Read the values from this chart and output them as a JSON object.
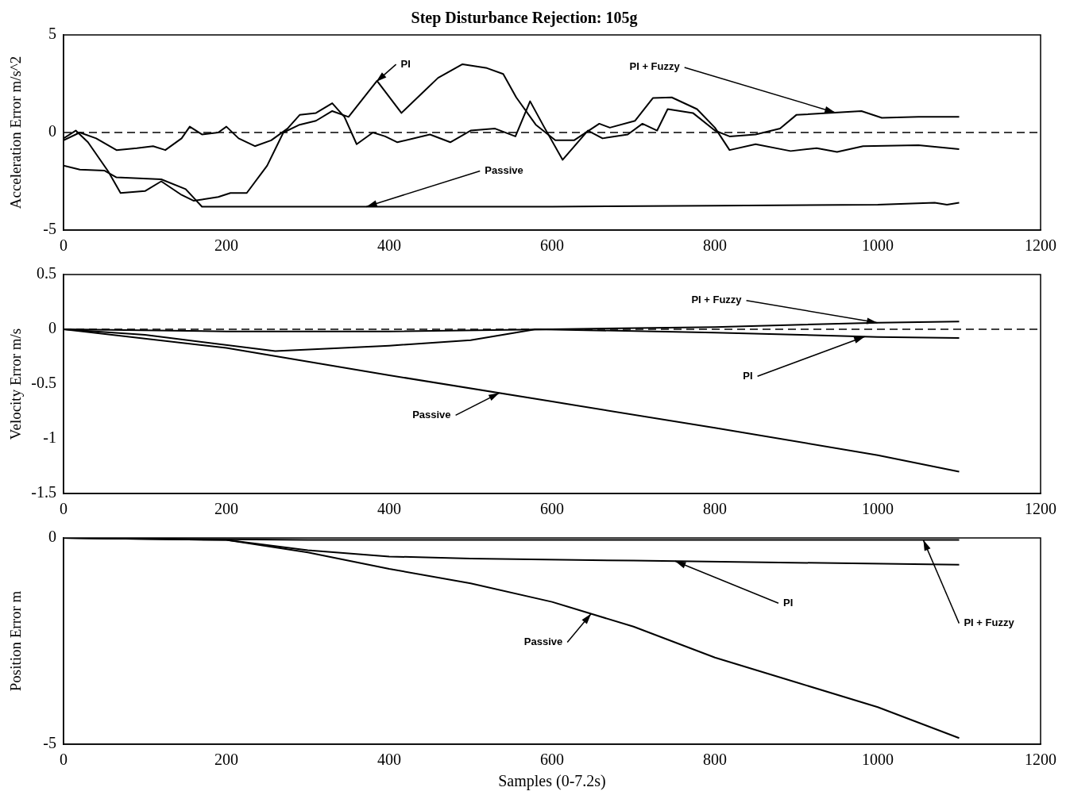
{
  "chart_data": [
    {
      "type": "line",
      "title": "Step Disturbance Rejection: 105g",
      "ylabel": "Acceleration Error m/s^2",
      "xlim": [
        0,
        1200
      ],
      "xticks": [
        0,
        200,
        400,
        600,
        800,
        1000,
        1200
      ],
      "ylim": [
        -5,
        5
      ],
      "yticks": [
        -5,
        0,
        5
      ],
      "series": [
        {
          "name": "PI",
          "color": "#000000",
          "x": [
            0,
            15,
            30,
            55,
            70,
            100,
            120,
            145,
            160,
            190,
            205,
            225,
            250,
            270,
            290,
            310,
            330,
            350,
            385,
            415,
            440,
            460,
            490,
            520,
            540,
            556,
            580,
            604,
            627,
            658,
            671,
            702,
            724,
            747,
            778,
            800,
            818,
            850,
            893,
            925,
            950,
            982,
            1050,
            1100
          ],
          "values": [
            -0.3,
            0.1,
            -0.5,
            -2.0,
            -3.1,
            -3.0,
            -2.5,
            -3.2,
            -3.5,
            -3.3,
            -3.1,
            -3.1,
            -1.7,
            0,
            0.4,
            0.6,
            1.1,
            0.8,
            2.65,
            1.0,
            2.0,
            2.8,
            3.5,
            3.3,
            3.0,
            1.8,
            0.4,
            -0.4,
            -0.4,
            0.45,
            0.25,
            0.6,
            1.77,
            1.8,
            1.2,
            0.25,
            -0.9,
            -0.6,
            -0.95,
            -0.8,
            -1.0,
            -0.7,
            -0.65,
            -0.85
          ]
        },
        {
          "name": "PI + Fuzzy",
          "color": "#000000",
          "x": [
            0,
            20,
            40,
            65,
            90,
            110,
            125,
            145,
            155,
            170,
            190,
            200,
            215,
            235,
            255,
            275,
            290,
            310,
            330,
            345,
            360,
            380,
            395,
            410,
            450,
            475,
            500,
            530,
            555,
            573,
            590,
            613,
            644,
            662,
            693,
            711,
            729,
            742,
            773,
            800,
            818,
            850,
            880,
            900,
            980,
            1005,
            1050,
            1100
          ],
          "values": [
            -0.4,
            0,
            -0.3,
            -0.9,
            -0.8,
            -0.7,
            -0.9,
            -0.3,
            0.3,
            -0.1,
            0,
            0.3,
            -0.3,
            -0.7,
            -0.4,
            0.2,
            0.9,
            1.0,
            1.5,
            0.8,
            -0.6,
            0,
            -0.2,
            -0.5,
            -0.1,
            -0.5,
            0.1,
            0.2,
            -0.2,
            1.6,
            0.3,
            -1.4,
            0.1,
            -0.3,
            -0.1,
            0.45,
            0.1,
            1.2,
            1.0,
            0.1,
            -0.2,
            -0.1,
            0.2,
            0.9,
            1.1,
            0.75,
            0.8,
            0.8
          ]
        },
        {
          "name": "Passive",
          "color": "#000000",
          "x": [
            0,
            20,
            50,
            65,
            120,
            150,
            170,
            400,
            600,
            800,
            1000,
            1070,
            1085,
            1100
          ],
          "values": [
            -1.7,
            -1.9,
            -1.95,
            -2.3,
            -2.4,
            -2.9,
            -3.8,
            -3.8,
            -3.8,
            -3.75,
            -3.7,
            -3.6,
            -3.7,
            -3.6
          ]
        }
      ],
      "ref_lines": [
        {
          "axis": "y",
          "value": 0,
          "line_style": "dashed",
          "color": "#000000"
        }
      ]
    },
    {
      "type": "line",
      "ylabel": "Velocity Error m/s",
      "xlim": [
        0,
        1200
      ],
      "xticks": [
        0,
        200,
        400,
        600,
        800,
        1000,
        1200
      ],
      "ylim": [
        -1.5,
        0.5
      ],
      "yticks": [
        -1.5,
        -1,
        -0.5,
        0,
        0.5
      ],
      "series": [
        {
          "name": "Passive",
          "color": "#000000",
          "x": [
            0,
            200,
            400,
            600,
            800,
            1000,
            1100
          ],
          "values": [
            0,
            -0.17,
            -0.42,
            -0.66,
            -0.9,
            -1.15,
            -1.3
          ]
        },
        {
          "name": "PI",
          "color": "#000000",
          "x": [
            0,
            100,
            260,
            400,
            500,
            580,
            800,
            1000,
            1100
          ],
          "values": [
            0,
            -0.05,
            -0.2,
            -0.15,
            -0.1,
            0,
            -0.03,
            -0.07,
            -0.08
          ]
        },
        {
          "name": "PI + Fuzzy",
          "color": "#000000",
          "x": [
            0,
            200,
            400,
            600,
            800,
            1000,
            1100
          ],
          "values": [
            0,
            -0.02,
            -0.02,
            0,
            0.02,
            0.06,
            0.07
          ]
        }
      ],
      "ref_lines": [
        {
          "axis": "y",
          "value": 0,
          "line_style": "dashed",
          "color": "#000000"
        }
      ]
    },
    {
      "type": "line",
      "xlabel": "Samples (0-7.2s)",
      "ylabel": "Position Error m",
      "xlim": [
        0,
        1200
      ],
      "xticks": [
        0,
        200,
        400,
        600,
        800,
        1000,
        1200
      ],
      "ylim": [
        -5,
        0
      ],
      "yticks": [
        -5,
        0
      ],
      "series": [
        {
          "name": "Passive",
          "color": "#000000",
          "x": [
            0,
            200,
            300,
            400,
            500,
            600,
            700,
            800,
            900,
            1000,
            1100
          ],
          "values": [
            0,
            -0.05,
            -0.35,
            -0.75,
            -1.1,
            -1.55,
            -2.15,
            -2.9,
            -3.5,
            -4.1,
            -4.85
          ]
        },
        {
          "name": "PI",
          "color": "#000000",
          "x": [
            0,
            200,
            300,
            400,
            500,
            700,
            1100
          ],
          "values": [
            0,
            -0.05,
            -0.3,
            -0.45,
            -0.5,
            -0.55,
            -0.65
          ]
        },
        {
          "name": "PI + Fuzzy",
          "color": "#000000",
          "x": [
            0,
            300,
            1100
          ],
          "values": [
            0,
            -0.05,
            -0.05
          ]
        }
      ]
    }
  ]
}
